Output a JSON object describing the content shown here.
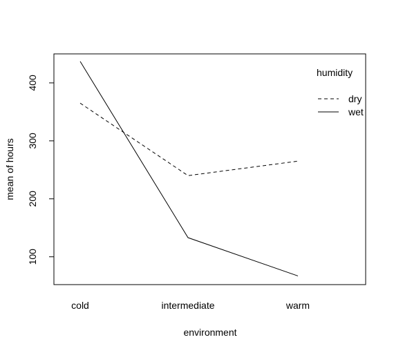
{
  "chart_data": {
    "type": "line",
    "categories": [
      "cold",
      "intermediate",
      "warm"
    ],
    "series": [
      {
        "name": "dry",
        "values": [
          365,
          240,
          265
        ],
        "dash": "dashed"
      },
      {
        "name": "wet",
        "values": [
          437,
          133,
          67
        ],
        "dash": "solid"
      }
    ],
    "xlabel": "environment",
    "ylabel": "mean of  hours",
    "yticks": [
      100,
      200,
      300,
      400
    ],
    "ylim": [
      52,
      450
    ],
    "legend": {
      "title": "humidity",
      "placement": "top-right"
    },
    "line_color": "#000000"
  }
}
